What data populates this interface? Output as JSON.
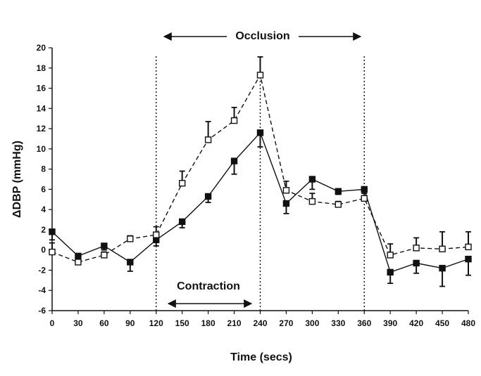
{
  "chart_data": {
    "type": "line",
    "xlabel": "Time (secs)",
    "ylabel": "ΔDBP (mmHg)",
    "xlim": [
      0,
      480
    ],
    "ylim": [
      -6,
      20
    ],
    "x_ticks": [
      "0",
      "30",
      "60",
      "90",
      "120",
      "150",
      "180",
      "210",
      "240",
      "270",
      "300",
      "330",
      "360",
      "390",
      "420",
      "450",
      "480"
    ],
    "y_ticks": [
      "20",
      "18",
      "16",
      "14",
      "12",
      "10",
      "8",
      "6",
      "4",
      "2",
      "0",
      "-2",
      "-4",
      "-6"
    ],
    "grid": false,
    "x": [
      0,
      30,
      60,
      90,
      120,
      150,
      180,
      210,
      240,
      270,
      300,
      330,
      360,
      390,
      420,
      450,
      480
    ],
    "series": [
      {
        "marker": "filled-square",
        "line_style": "solid",
        "values": [
          1.8,
          -0.6,
          0.4,
          -1.2,
          1.0,
          2.8,
          5.3,
          8.8,
          11.6,
          4.6,
          7.0,
          5.8,
          6.0,
          -2.2,
          -1.3,
          -1.8,
          -0.9
        ],
        "error": [
          0.8,
          0.8,
          0.4,
          0.9,
          0.6,
          0.6,
          0.6,
          1.3,
          1.4,
          1.0,
          1.0,
          0.3,
          0.4,
          1.1,
          1.0,
          1.8,
          1.6
        ]
      },
      {
        "marker": "open-square",
        "line_style": "dashed",
        "values": [
          -0.2,
          -1.2,
          -0.5,
          1.1,
          1.5,
          6.6,
          10.9,
          12.8,
          17.3,
          5.9,
          4.8,
          4.5,
          5.1,
          -0.5,
          0.2,
          0.1,
          0.3
        ],
        "error": [
          0.9,
          0.5,
          0.3,
          0.3,
          0.8,
          1.2,
          1.8,
          1.3,
          1.8,
          0.9,
          0.8,
          0.3,
          0.5,
          1.1,
          1.0,
          1.7,
          1.5
        ]
      }
    ],
    "vlines": [
      120,
      240,
      360
    ],
    "annotations": [
      {
        "text": "Occlusion",
        "from": 120,
        "to": 360,
        "position": "top"
      },
      {
        "text": "Contraction",
        "from": 120,
        "to": 240,
        "position": "bottom"
      }
    ]
  },
  "colors": {
    "ink": "#111111",
    "background": "#ffffff"
  }
}
